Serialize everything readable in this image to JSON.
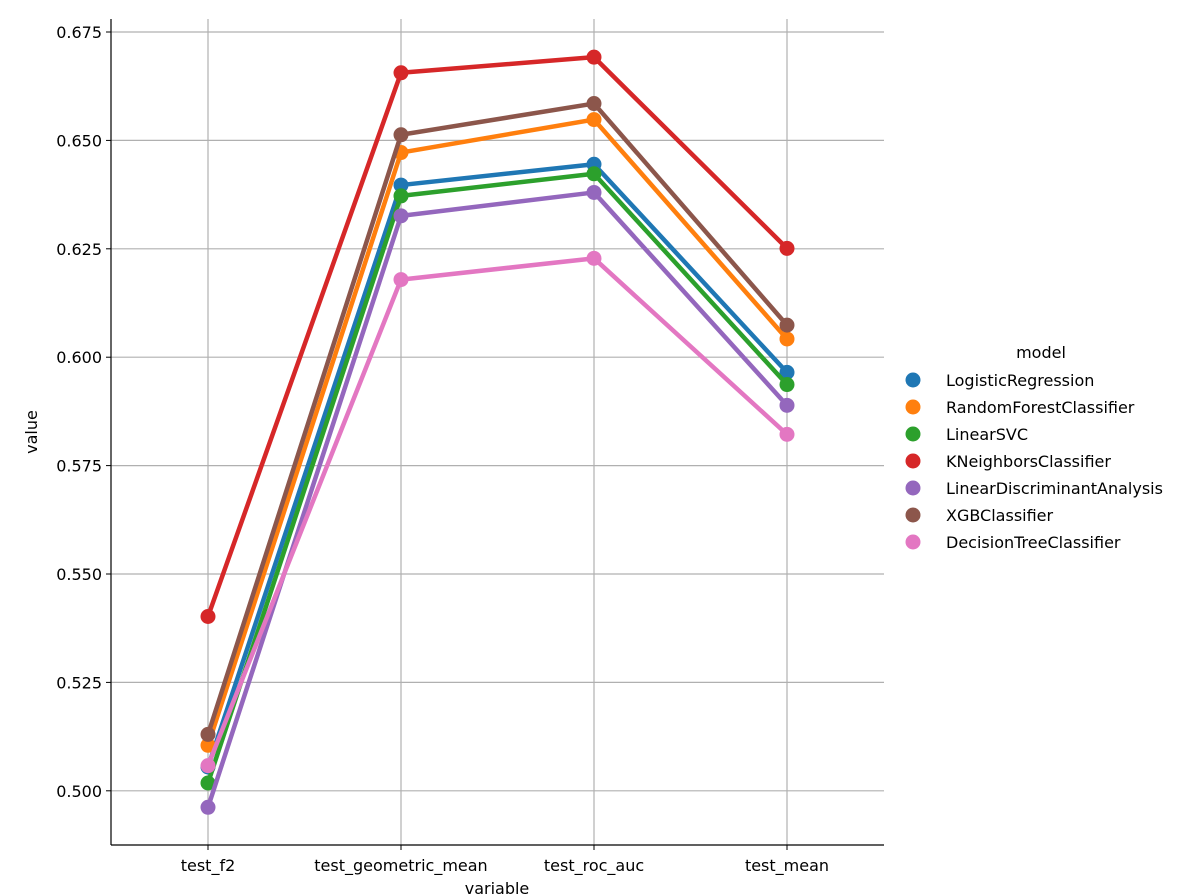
{
  "chart_data": {
    "type": "line",
    "categories": [
      "test_f2",
      "test_geometric_mean",
      "test_roc_auc",
      "test_mean"
    ],
    "xlabel": "variable",
    "ylabel": "value",
    "ylim": [
      0.4875,
      0.678
    ],
    "yticks": [
      0.5,
      0.525,
      0.55,
      0.575,
      0.6,
      0.625,
      0.65,
      0.675
    ],
    "ytick_labels": [
      "0.500",
      "0.525",
      "0.550",
      "0.575",
      "0.600",
      "0.625",
      "0.650",
      "0.675"
    ],
    "grid": true,
    "legend": {
      "title": "model",
      "placement": "right"
    },
    "series": [
      {
        "name": "LogisticRegression",
        "color": "#1f77b4",
        "values": [
          0.5055,
          0.6397,
          0.6445,
          0.5965
        ]
      },
      {
        "name": "RandomForestClassifier",
        "color": "#ff7f0e",
        "values": [
          0.5105,
          0.6472,
          0.6548,
          0.6042
        ]
      },
      {
        "name": "LinearSVC",
        "color": "#2ca02c",
        "values": [
          0.5018,
          0.6372,
          0.6423,
          0.5937
        ]
      },
      {
        "name": "KNeighborsClassifier",
        "color": "#d62728",
        "values": [
          0.5402,
          0.6656,
          0.6692,
          0.6251
        ]
      },
      {
        "name": "LinearDiscriminantAnalysis",
        "color": "#9467bd",
        "values": [
          0.4962,
          0.6326,
          0.638,
          0.5889
        ]
      },
      {
        "name": "XGBClassifier",
        "color": "#8c564b",
        "values": [
          0.513,
          0.6513,
          0.6585,
          0.6074
        ]
      },
      {
        "name": "DecisionTreeClassifier",
        "color": "#e377c2",
        "values": [
          0.5058,
          0.6179,
          0.6228,
          0.5822
        ]
      }
    ]
  }
}
